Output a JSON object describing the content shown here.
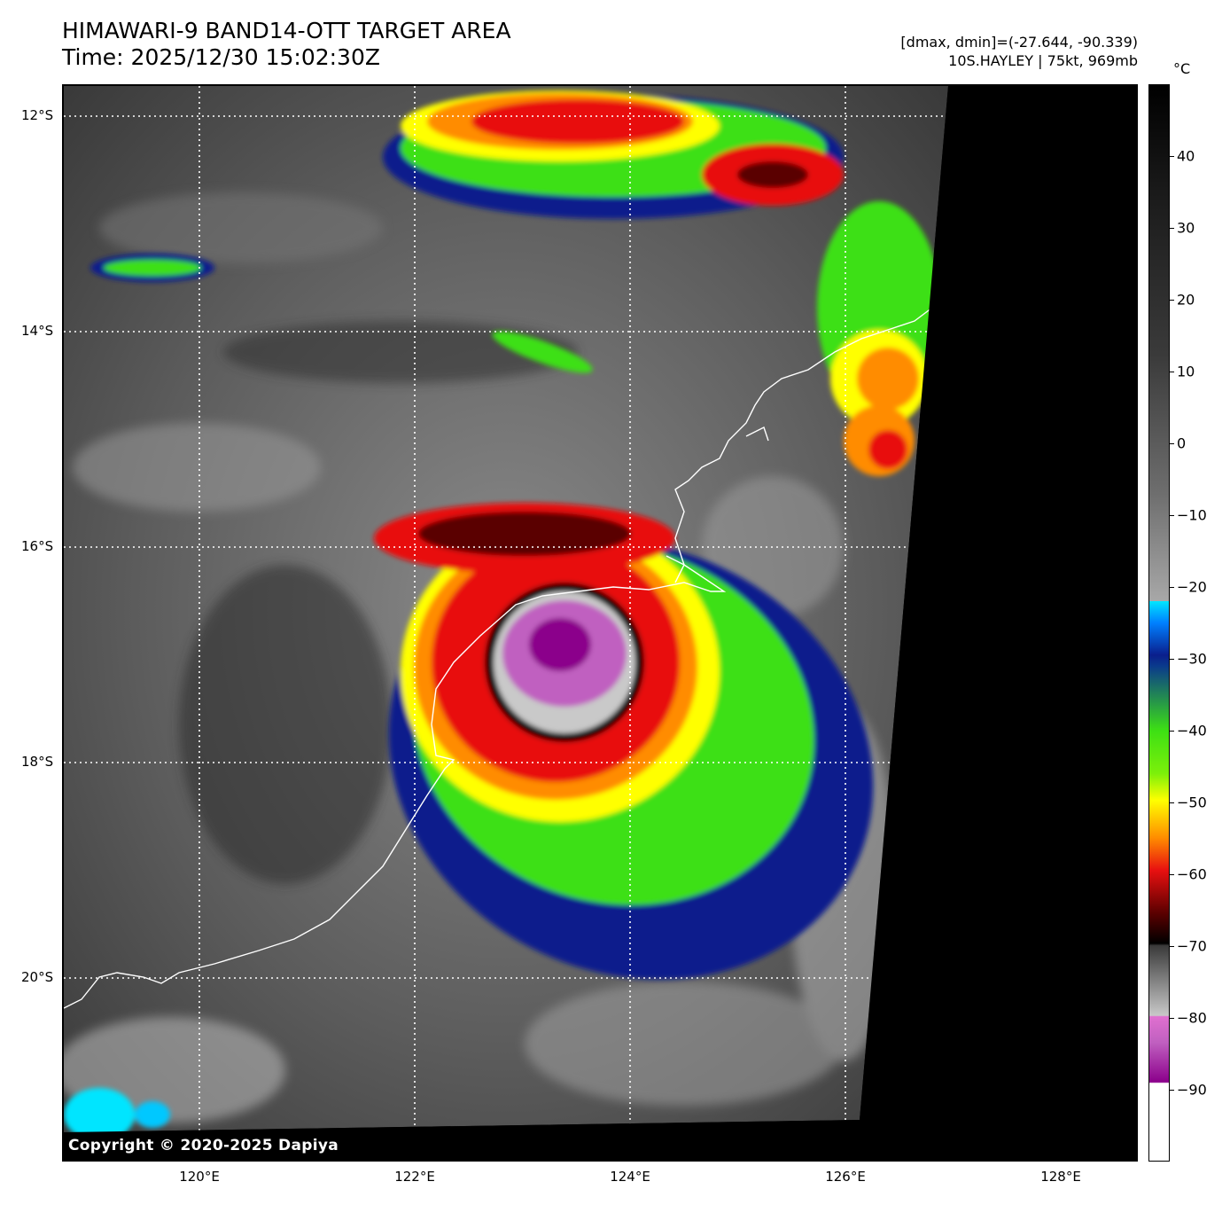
{
  "header": {
    "title_line1": "HIMAWARI-9 BAND14-OTT TARGET AREA",
    "title_line2": "Time: 2025/12/30 15:02:30Z",
    "range_text": "[dmax, dmin]=(-27.644, -90.339)",
    "storm_text": "10S.HAYLEY | 75kt, 969mb"
  },
  "map": {
    "lat_labels": [
      "12°S",
      "14°S",
      "16°S",
      "18°S",
      "20°S"
    ],
    "lon_labels": [
      "120°E",
      "122°E",
      "124°E",
      "126°E",
      "128°E"
    ],
    "copyright": "Copyright © 2020-2025 Dapiya",
    "storm_name": "10S.HAYLEY"
  },
  "colorbar": {
    "unit": "°C",
    "ticks": [
      "40",
      "30",
      "20",
      "10",
      "0",
      "−10",
      "−20",
      "−30",
      "−40",
      "−50",
      "−60",
      "−70",
      "−80",
      "−90"
    ],
    "range": [
      -100,
      50
    ],
    "colors": {
      "warm_black": "#000000",
      "cold_white": "#ffffff",
      "cyan": "#00e5ff",
      "blue": "#0a1e8c",
      "green": "#3de014",
      "yellow": "#ffff00",
      "orange": "#ff8c00",
      "red": "#e81010",
      "dark_red": "#5a0000",
      "magenta": "#c060c0",
      "purple": "#8b008b"
    }
  }
}
